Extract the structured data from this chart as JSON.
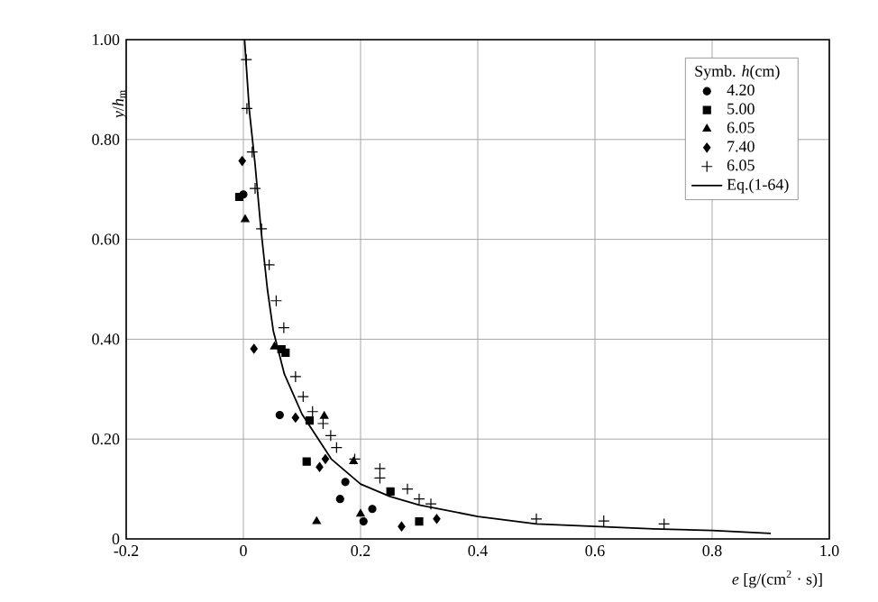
{
  "chart_data": {
    "type": "scatter",
    "xlabel": "*e* [g/(cm$^{2}$ · s)]",
    "ylabel": "*y*/*h*$_{m}$",
    "legend_title": "Symb. *h*(cm)",
    "legend": "top right",
    "grid": true,
    "xlim": [
      -0.2,
      1.0
    ],
    "ylim": [
      0,
      1.0
    ],
    "xticks": [
      -0.2,
      0,
      0.2,
      0.4,
      0.6,
      0.8,
      {
        "value": 1.0,
        "label": "1.0"
      }
    ],
    "yticks": [
      0,
      {
        "value": 0.2,
        "label": "0.20"
      },
      {
        "value": 0.4,
        "label": "0.40"
      },
      {
        "value": 0.6,
        "label": "0.60"
      },
      {
        "value": 0.8,
        "label": "0.80"
      },
      {
        "value": 1.0,
        "label": "1.00"
      }
    ],
    "series": [
      {
        "name": "4.20",
        "color": "#000000",
        "marker": "circle",
        "x": [
          0.0,
          0.062,
          0.174,
          0.165,
          0.205,
          0.22
        ],
        "values": [
          0.69,
          0.248,
          0.114,
          0.08,
          0.035,
          0.06
        ]
      },
      {
        "name": "5.00",
        "color": "#000000",
        "marker": "square",
        "x": [
          -0.007,
          0.072,
          0.065,
          0.113,
          0.108,
          0.251,
          0.3
        ],
        "values": [
          0.685,
          0.373,
          0.38,
          0.237,
          0.155,
          0.095,
          0.035
        ]
      },
      {
        "name": "6.05",
        "color": "#000000",
        "marker": "triangle",
        "x": [
          0.003,
          0.053,
          0.138,
          0.188,
          0.125,
          0.2
        ],
        "values": [
          0.64,
          0.385,
          0.246,
          0.155,
          0.035,
          0.05
        ]
      },
      {
        "name": "7.40",
        "color": "#000000",
        "marker": "diamond",
        "x": [
          -0.002,
          0.018,
          0.089,
          0.13,
          0.14,
          0.27,
          0.33
        ],
        "values": [
          0.757,
          0.381,
          0.243,
          0.144,
          0.16,
          0.025,
          0.04
        ]
      },
      {
        "name": "6.05",
        "color": "#000000",
        "marker": "cross",
        "x": [
          0.005,
          0.006,
          0.015,
          0.02,
          0.031,
          0.044,
          0.056,
          0.069,
          0.089,
          0.102,
          0.118,
          0.136,
          0.149,
          0.159,
          0.19,
          0.233,
          0.233,
          0.28,
          0.3,
          0.32,
          0.5,
          0.615,
          0.718
        ],
        "values": [
          0.96,
          0.862,
          0.775,
          0.702,
          0.621,
          0.549,
          0.477,
          0.423,
          0.325,
          0.285,
          0.255,
          0.231,
          0.207,
          0.183,
          0.16,
          0.141,
          0.122,
          0.1,
          0.08,
          0.07,
          0.04,
          0.036,
          0.03
        ]
      },
      {
        "name": "Eq.(1-64)",
        "type": "line",
        "color": "#000000",
        "marker": "none",
        "x": [
          0.002,
          0.01,
          0.02,
          0.03,
          0.041,
          0.051,
          0.07,
          0.1,
          0.15,
          0.2,
          0.25,
          0.3,
          0.4,
          0.5,
          0.6,
          0.7,
          0.8,
          0.9
        ],
        "values": [
          1.0,
          0.86,
          0.75,
          0.62,
          0.5,
          0.417,
          0.33,
          0.25,
          0.16,
          0.11,
          0.085,
          0.068,
          0.045,
          0.03,
          0.025,
          0.02,
          0.017,
          0.011
        ]
      }
    ]
  }
}
